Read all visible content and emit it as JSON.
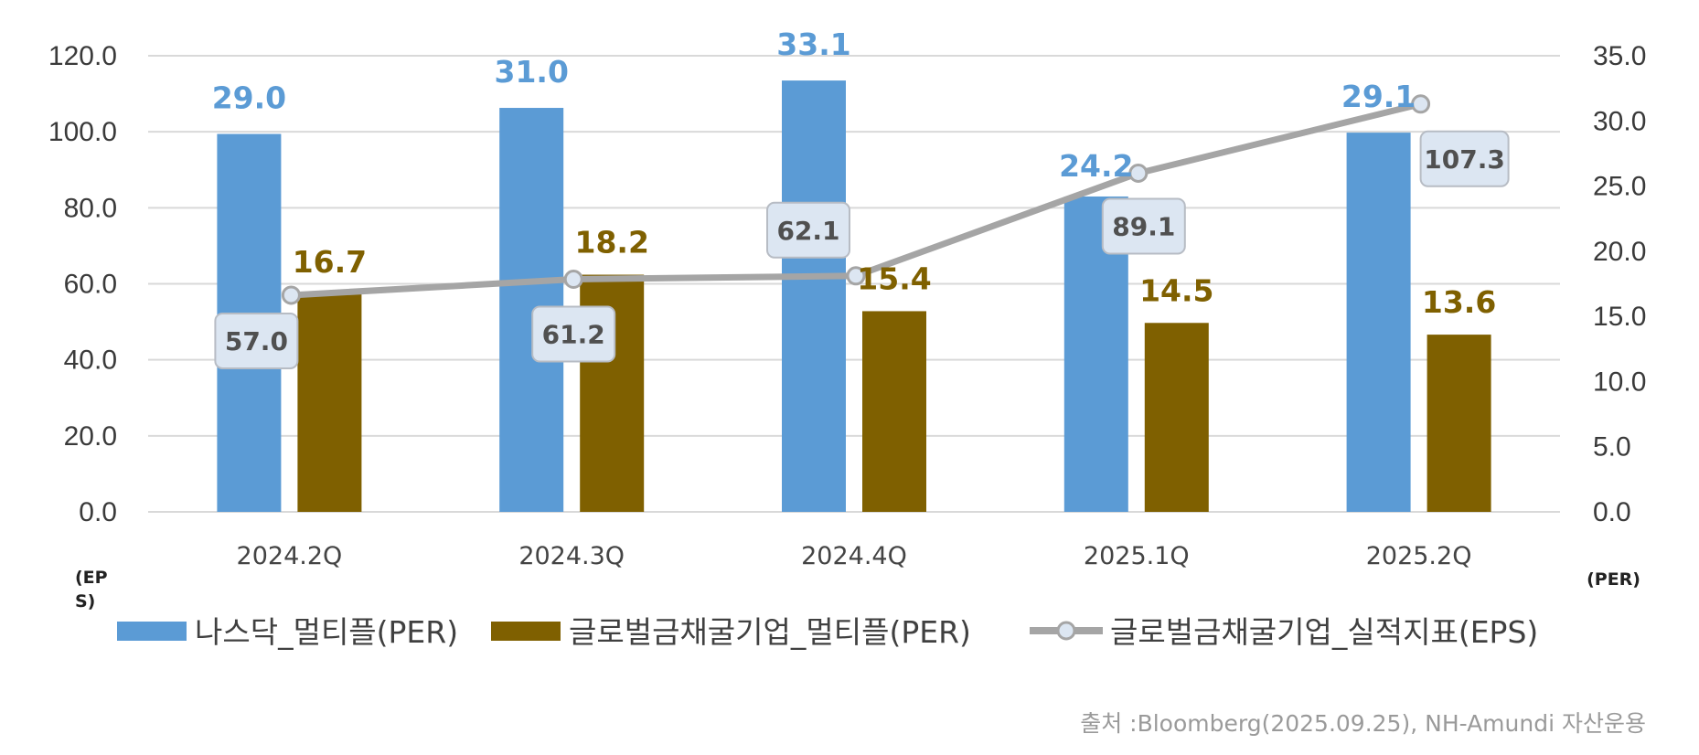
{
  "chart_data": {
    "type": "bar",
    "categories": [
      "2024.2Q",
      "2024.3Q",
      "2024.4Q",
      "2025.1Q",
      "2025.2Q"
    ],
    "series": [
      {
        "name": "나스닥_멀티플(PER)",
        "kind": "bar",
        "axis": "right",
        "color": "#5b9bd5",
        "label_color": "#5b9bd5",
        "values": [
          29.0,
          31.0,
          33.1,
          24.2,
          29.1
        ],
        "labels": [
          "29.0",
          "31.0",
          "33.1",
          "24.2",
          "29.1"
        ]
      },
      {
        "name": "글로벌금채굴기업_멀티플(PER)",
        "kind": "bar",
        "axis": "right",
        "color": "#7f6000",
        "label_color": "#7f6000",
        "values": [
          16.7,
          18.2,
          15.4,
          14.5,
          13.6
        ],
        "labels": [
          "16.7",
          "18.2",
          "15.4",
          "14.5",
          "13.6"
        ]
      },
      {
        "name": "글로벌금채굴기업_실적지표(EPS)",
        "kind": "line",
        "axis": "left",
        "color": "#a5a5a5",
        "values": [
          57.0,
          61.2,
          62.1,
          89.1,
          107.3
        ],
        "labels": [
          "57.0",
          "61.2",
          "62.1",
          "89.1",
          "107.3"
        ]
      }
    ],
    "left_axis": {
      "unit": "(EPS)",
      "ylim": [
        0,
        120
      ],
      "ticks": [
        "0.0",
        "20.0",
        "40.0",
        "60.0",
        "80.0",
        "100.0",
        "120.0"
      ]
    },
    "right_axis": {
      "unit": "(PER)",
      "ylim": [
        0,
        35
      ],
      "ticks": [
        "0.0",
        "5.0",
        "10.0",
        "15.0",
        "20.0",
        "25.0",
        "30.0",
        "35.0"
      ]
    },
    "grid": true,
    "legend": "bottom",
    "source": "출처 :Bloomberg(2025.09.25),  NH-Amundi 자산운용"
  }
}
